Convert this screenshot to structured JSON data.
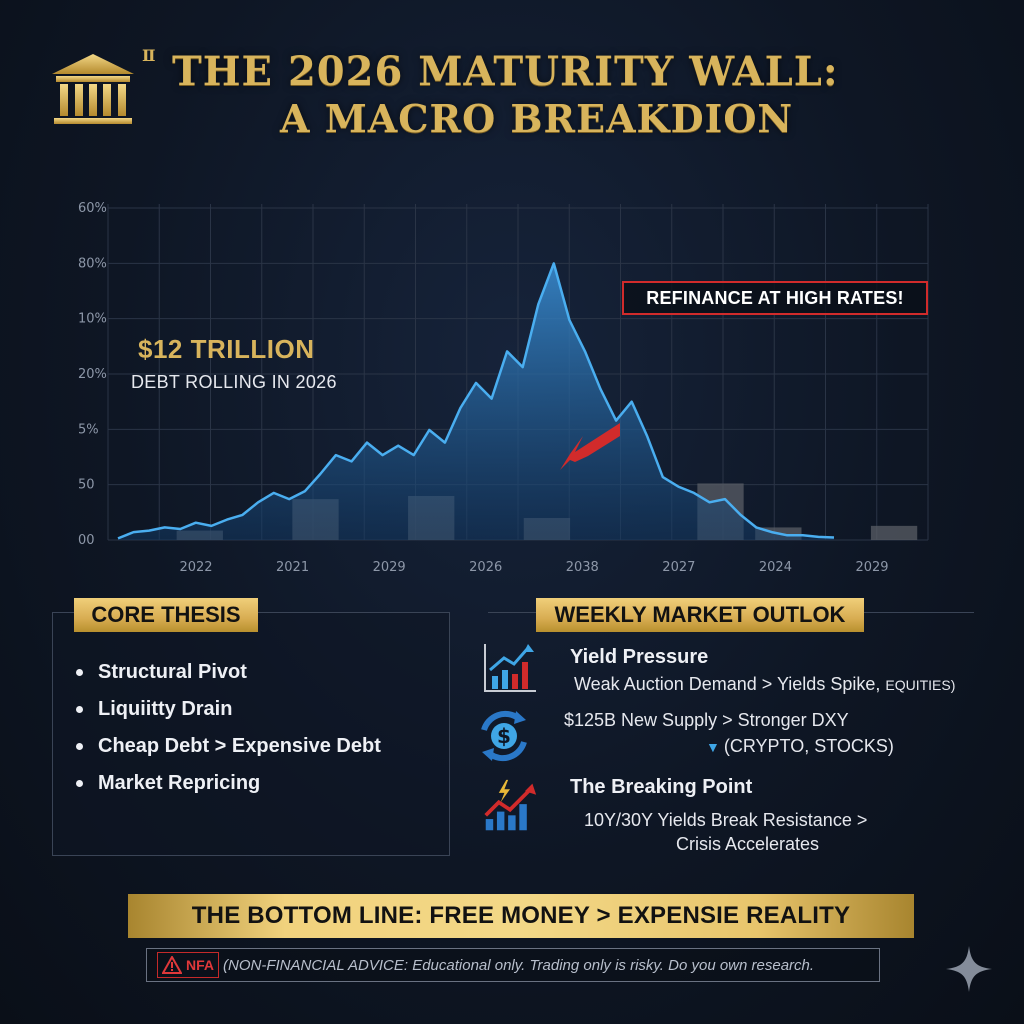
{
  "header": {
    "title_mini": "Ⅱ",
    "title_line1": "THE 2026 MATURITY WALL:",
    "title_line2": "A MACRO BREAKDION",
    "icon": "bank-building-icon"
  },
  "chart_data": {
    "type": "area",
    "title": "",
    "y_tick_labels": [
      "00",
      "50",
      "5%",
      "20%",
      "10%",
      "80%",
      "60%"
    ],
    "x_tick_labels": [
      "2022",
      "2021",
      "2029",
      "2026",
      "2038",
      "2027",
      "2024",
      "2029"
    ],
    "series": [
      {
        "type": "area",
        "values": [
          0.5,
          2.5,
          3,
          4,
          3.5,
          5.5,
          4.5,
          6.5,
          8,
          12,
          15,
          13,
          15.5,
          21,
          27,
          25,
          31,
          27,
          30,
          27,
          35,
          31,
          42,
          50,
          45,
          60,
          55,
          75,
          88,
          70,
          60,
          48,
          38,
          44,
          33,
          20,
          17,
          15,
          12,
          13,
          8,
          4,
          2.5,
          1.5,
          1.5,
          1,
          0.8
        ]
      },
      {
        "type": "bar",
        "values": [
          0,
          3,
          0,
          13,
          0,
          14,
          0,
          7,
          0,
          0,
          18,
          4,
          0,
          4.5
        ]
      }
    ],
    "ylim": [
      0,
      105
    ],
    "grid": true,
    "annotation": {
      "amount": "$12 TRILLION",
      "caption": "DEBT ROLLING IN 2026",
      "callout": "REFINANCE AT HIGH RATES!"
    },
    "colors": {
      "line": "#4aaef0",
      "fill": "#2c6fb0",
      "bars": "#5a5e66",
      "callout": "#d12b2b"
    }
  },
  "core_thesis": {
    "label": "CORE THESIS",
    "items": [
      "Structural Pivot",
      "Liquiitty Drain",
      "Cheap Debt > Expensive Debt",
      "Market Repricing"
    ]
  },
  "weekly": {
    "label": "WEEKLY MARKET OUTLOK",
    "items": [
      {
        "icon": "bar-chart-arrow-icon",
        "title": "Yield Pressure",
        "body": "Weak Auction Demand > Yields Spike,",
        "small": "EQUITIES)"
      },
      {
        "icon": "dollar-cycle-icon",
        "body": "$125B New Supply > Stronger DXY",
        "sub": "(CRYPTO, STOCKS)"
      },
      {
        "icon": "lightning-chart-icon",
        "title": "The Breaking Point",
        "body": "10Y/30Y Yields Break Resistance >",
        "body2": "Crisis Accelerates"
      }
    ]
  },
  "bottom_line": "THE BOTTOM LINE: FREE MONEY > EXPENSIE REALITY",
  "disclaimer": {
    "tag": "NFA",
    "text": "(NON-FINANCIAL ADVICE: Educational only. Trading only is risky. Do you own research."
  },
  "colors": {
    "gold": "#d8b45c",
    "background": "#0e1624",
    "accent_blue": "#3fa6e6",
    "alert_red": "#d12b2b"
  }
}
